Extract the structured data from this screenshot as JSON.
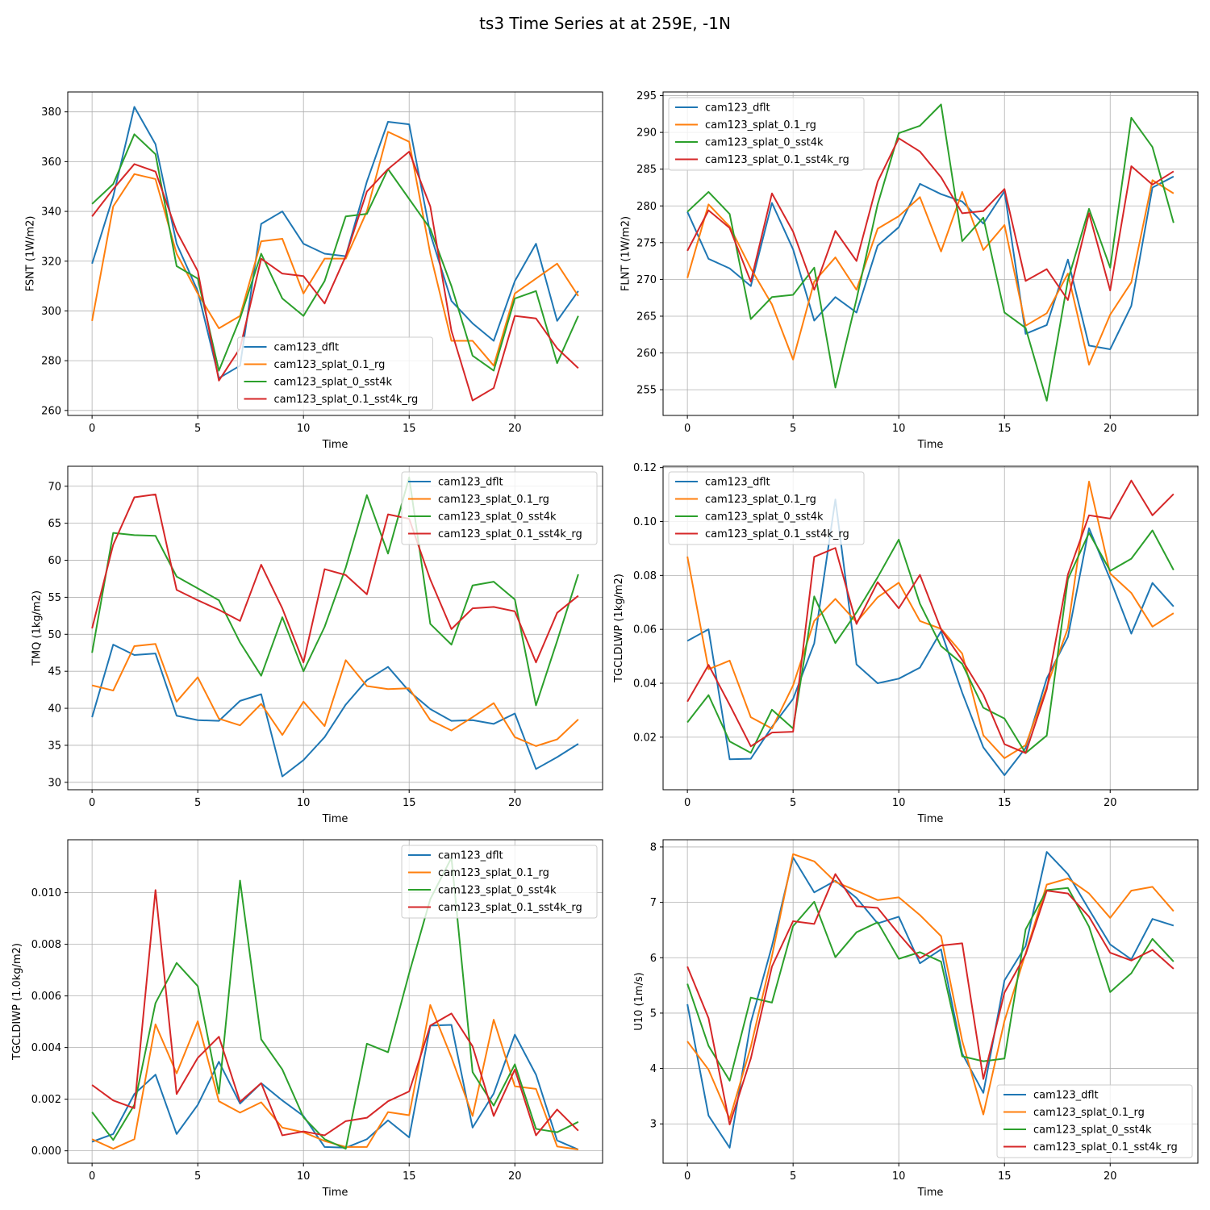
{
  "figure": {
    "title": "ts3 Time Series at at 259E, -1N"
  },
  "series_names": [
    "cam123_dflt",
    "cam123_splat_0.1_rg",
    "cam123_splat_0_sst4k",
    "cam123_splat_0.1_sst4k_rg"
  ],
  "colors": [
    "#1f77b4",
    "#ff7f0e",
    "#2ca02c",
    "#d62728"
  ],
  "chart_data": [
    {
      "type": "line",
      "title": "",
      "xlabel": "Time",
      "ylabel": "FSNT (1W/m2)",
      "x": [
        0,
        1,
        2,
        3,
        4,
        5,
        6,
        7,
        8,
        9,
        10,
        11,
        12,
        13,
        14,
        15,
        16,
        17,
        18,
        19,
        20,
        21,
        22,
        23
      ],
      "xlim": [
        -1.15,
        24.15
      ],
      "ylim": [
        258,
        388
      ],
      "xticks": [
        0,
        5,
        10,
        15,
        20
      ],
      "yticks": [
        260,
        280,
        300,
        320,
        340,
        360,
        380
      ],
      "ytick_labels": [
        "260",
        "280",
        "300",
        "320",
        "340",
        "360",
        "380"
      ],
      "grid": true,
      "legend_loc": "lower-center",
      "series": [
        {
          "name": "cam123_dflt",
          "values": [
            319,
            346,
            382,
            367,
            327,
            308,
            273,
            278,
            335,
            340,
            327,
            323,
            322,
            352,
            376,
            375,
            331,
            304,
            295,
            288,
            312,
            327,
            296,
            308
          ]
        },
        {
          "name": "cam123_splat_0.1_rg",
          "values": [
            296,
            342,
            355,
            353,
            323,
            307,
            293,
            298,
            328,
            329,
            307,
            321,
            321,
            340,
            372,
            368,
            323,
            288,
            288,
            278,
            307,
            313,
            319,
            306
          ]
        },
        {
          "name": "cam123_splat_0_sst4k",
          "values": [
            343,
            351,
            371,
            363,
            318,
            313,
            276,
            297,
            323,
            305,
            298,
            312,
            338,
            339,
            357,
            345,
            333,
            310,
            282,
            276,
            305,
            308,
            279,
            298
          ]
        },
        {
          "name": "cam123_splat_0.1_sst4k_rg",
          "values": [
            338,
            349,
            359,
            356,
            332,
            316,
            272,
            285,
            321,
            315,
            314,
            303,
            322,
            348,
            357,
            364,
            342,
            292,
            264,
            269,
            298,
            297,
            285,
            277
          ]
        }
      ]
    },
    {
      "type": "line",
      "title": "",
      "xlabel": "Time",
      "ylabel": "FLNT (1W/m2)",
      "x": [
        0,
        1,
        2,
        3,
        4,
        5,
        6,
        7,
        8,
        9,
        10,
        11,
        12,
        13,
        14,
        15,
        16,
        17,
        18,
        19,
        20,
        21,
        22,
        23
      ],
      "xlim": [
        -1.15,
        24.15
      ],
      "ylim": [
        251.5,
        295.5
      ],
      "xticks": [
        0,
        5,
        10,
        15,
        20
      ],
      "yticks": [
        255,
        260,
        265,
        270,
        275,
        280,
        285,
        290,
        295
      ],
      "ytick_labels": [
        "255",
        "260",
        "265",
        "270",
        "275",
        "280",
        "285",
        "290",
        "295"
      ],
      "grid": true,
      "legend_loc": "upper-left",
      "series": [
        {
          "name": "cam123_dflt",
          "values": [
            279.2,
            272.8,
            271.5,
            269.1,
            280.4,
            274.1,
            264.4,
            267.6,
            265.5,
            274.6,
            277.1,
            283.0,
            281.6,
            280.6,
            277.6,
            282.0,
            262.6,
            263.8,
            272.7,
            261.0,
            260.5,
            266.4,
            282.5,
            284.0
          ]
        },
        {
          "name": "cam123_splat_0.1_rg",
          "values": [
            270.2,
            280.2,
            277.2,
            271.5,
            266.6,
            259.1,
            269.7,
            273.0,
            268.6,
            276.9,
            278.6,
            281.2,
            273.8,
            281.9,
            274.0,
            277.4,
            263.7,
            265.4,
            270.8,
            258.4,
            265.2,
            269.6,
            283.5,
            281.7
          ]
        },
        {
          "name": "cam123_splat_0_sst4k",
          "values": [
            279.2,
            281.9,
            278.9,
            264.6,
            267.6,
            267.9,
            271.6,
            255.3,
            267.3,
            280.2,
            289.9,
            290.9,
            293.8,
            275.2,
            278.4,
            265.5,
            263.4,
            253.5,
            269.9,
            279.6,
            271.6,
            292.0,
            288.0,
            277.7
          ]
        },
        {
          "name": "cam123_splat_0.1_sst4k_rg",
          "values": [
            273.9,
            279.4,
            277.0,
            269.7,
            281.7,
            276.5,
            268.6,
            276.6,
            272.5,
            283.3,
            289.2,
            287.4,
            283.9,
            279.0,
            279.3,
            282.3,
            269.8,
            271.4,
            267.2,
            279.0,
            268.5,
            285.4,
            282.9,
            284.7
          ]
        }
      ]
    },
    {
      "type": "line",
      "title": "",
      "xlabel": "Time",
      "ylabel": "TMQ (1kg/m2)",
      "x": [
        0,
        1,
        2,
        3,
        4,
        5,
        6,
        7,
        8,
        9,
        10,
        11,
        12,
        13,
        14,
        15,
        16,
        17,
        18,
        19,
        20,
        21,
        22,
        23
      ],
      "xlim": [
        -1.15,
        24.15
      ],
      "ylim": [
        29,
        72.7
      ],
      "xticks": [
        0,
        5,
        10,
        15,
        20
      ],
      "yticks": [
        30,
        35,
        40,
        45,
        50,
        55,
        60,
        65,
        70
      ],
      "ytick_labels": [
        "30",
        "35",
        "40",
        "45",
        "50",
        "55",
        "60",
        "65",
        "70"
      ],
      "grid": true,
      "legend_loc": "upper-right",
      "series": [
        {
          "name": "cam123_dflt",
          "values": [
            38.8,
            48.6,
            47.2,
            47.4,
            39.0,
            38.4,
            38.3,
            41.0,
            41.9,
            30.8,
            33.0,
            36.1,
            40.5,
            43.8,
            45.6,
            42.3,
            39.9,
            38.3,
            38.4,
            37.9,
            39.3,
            31.8,
            33.4,
            35.2
          ]
        },
        {
          "name": "cam123_splat_0.1_rg",
          "values": [
            43.1,
            42.4,
            48.4,
            48.7,
            40.9,
            44.2,
            38.6,
            37.7,
            40.6,
            36.4,
            40.9,
            37.6,
            46.5,
            43.0,
            42.6,
            42.7,
            38.4,
            37.0,
            38.8,
            40.7,
            36.1,
            34.9,
            35.8,
            38.5
          ]
        },
        {
          "name": "cam123_splat_0_sst4k",
          "values": [
            47.5,
            63.7,
            63.4,
            63.3,
            57.8,
            56.2,
            54.6,
            48.9,
            44.4,
            52.3,
            45.0,
            51.0,
            59.0,
            68.8,
            60.9,
            71.2,
            51.4,
            48.6,
            56.6,
            57.1,
            54.7,
            40.4,
            49.1,
            58.1
          ]
        },
        {
          "name": "cam123_splat_0.1_sst4k_rg",
          "values": [
            50.8,
            62.1,
            68.5,
            68.9,
            56.0,
            54.6,
            53.3,
            51.8,
            59.4,
            53.5,
            46.2,
            58.8,
            58.0,
            55.4,
            66.2,
            65.6,
            57.4,
            50.7,
            53.5,
            53.7,
            53.1,
            46.2,
            52.9,
            55.2
          ]
        }
      ]
    },
    {
      "type": "line",
      "title": "",
      "xlabel": "Time",
      "ylabel": "TGCLDLWP (1kg/m2)",
      "x": [
        0,
        1,
        2,
        3,
        4,
        5,
        6,
        7,
        8,
        9,
        10,
        11,
        12,
        13,
        14,
        15,
        16,
        17,
        18,
        19,
        20,
        21,
        22,
        23
      ],
      "xlim": [
        -1.15,
        24.15
      ],
      "ylim": [
        0.0005,
        0.1205
      ],
      "xticks": [
        0,
        5,
        10,
        15,
        20
      ],
      "yticks": [
        0.02,
        0.04,
        0.06,
        0.08,
        0.1,
        0.12
      ],
      "ytick_labels": [
        "0.02",
        "0.04",
        "0.06",
        "0.08",
        "0.10",
        "0.12"
      ],
      "grid": true,
      "legend_loc": "upper-left",
      "series": [
        {
          "name": "cam123_dflt",
          "values": [
            0.0557,
            0.06,
            0.0118,
            0.012,
            0.0238,
            0.0342,
            0.0548,
            0.1082,
            0.047,
            0.04,
            0.0417,
            0.0458,
            0.0593,
            0.0365,
            0.0162,
            0.0059,
            0.016,
            0.0418,
            0.0572,
            0.0975,
            0.0786,
            0.0584,
            0.0772,
            0.0685
          ]
        },
        {
          "name": "cam123_splat_0.1_rg",
          "values": [
            0.087,
            0.0452,
            0.0484,
            0.0274,
            0.0232,
            0.0392,
            0.0631,
            0.0713,
            0.0627,
            0.0719,
            0.0773,
            0.0631,
            0.0602,
            0.051,
            0.0207,
            0.0122,
            0.017,
            0.0387,
            0.0604,
            0.1148,
            0.0807,
            0.0735,
            0.061,
            0.066
          ]
        },
        {
          "name": "cam123_splat_0_sst4k",
          "values": [
            0.0255,
            0.0356,
            0.0184,
            0.0142,
            0.0302,
            0.0232,
            0.0722,
            0.0549,
            0.0663,
            0.0793,
            0.0933,
            0.0695,
            0.0538,
            0.0472,
            0.0309,
            0.0269,
            0.0141,
            0.0206,
            0.0786,
            0.0958,
            0.0817,
            0.0862,
            0.0967,
            0.082
          ]
        },
        {
          "name": "cam123_splat_0.1_sst4k_rg",
          "values": [
            0.0332,
            0.0468,
            0.032,
            0.0166,
            0.0217,
            0.022,
            0.0869,
            0.0902,
            0.062,
            0.0775,
            0.0678,
            0.0802,
            0.06,
            0.0486,
            0.0358,
            0.0174,
            0.0141,
            0.0378,
            0.0803,
            0.1023,
            0.1011,
            0.1152,
            0.1023,
            0.1102
          ]
        }
      ]
    },
    {
      "type": "line",
      "title": "",
      "xlabel": "Time",
      "ylabel": "TGCLDIWP (1.0kg/m2)",
      "x": [
        0,
        1,
        2,
        3,
        4,
        5,
        6,
        7,
        8,
        9,
        10,
        11,
        12,
        13,
        14,
        15,
        16,
        17,
        18,
        19,
        20,
        21,
        22,
        23
      ],
      "xlim": [
        -1.15,
        24.15
      ],
      "ylim": [
        -0.00048,
        0.01205
      ],
      "xticks": [
        0,
        5,
        10,
        15,
        20
      ],
      "yticks": [
        0.0,
        0.002,
        0.004,
        0.006,
        0.008,
        0.01
      ],
      "ytick_labels": [
        "0.000",
        "0.002",
        "0.004",
        "0.006",
        "0.008",
        "0.010"
      ],
      "grid": true,
      "legend_loc": "upper-right",
      "series": [
        {
          "name": "cam123_dflt",
          "values": [
            0.00035,
            0.00065,
            0.0022,
            0.00295,
            0.00065,
            0.00178,
            0.00345,
            0.00183,
            0.00262,
            0.00195,
            0.00135,
            0.00015,
            0.00012,
            0.00045,
            0.00118,
            0.00052,
            0.00485,
            0.00488,
            0.0009,
            0.00222,
            0.0045,
            0.00295,
            0.0004,
            5e-05
          ]
        },
        {
          "name": "cam123_splat_0.1_rg",
          "values": [
            0.00045,
            8e-05,
            0.00045,
            0.0049,
            0.003,
            0.00502,
            0.00192,
            0.00148,
            0.00188,
            0.0009,
            0.00072,
            0.00038,
            0.00015,
            0.00015,
            0.0015,
            0.00138,
            0.00565,
            0.00362,
            0.00135,
            0.00508,
            0.0025,
            0.0024,
            0.00017,
            5e-05
          ]
        },
        {
          "name": "cam123_splat_0_sst4k",
          "values": [
            0.0015,
            0.00042,
            0.00178,
            0.00572,
            0.00728,
            0.00638,
            0.00222,
            0.01047,
            0.00432,
            0.00315,
            0.0013,
            0.00045,
            8e-05,
            0.00415,
            0.00382,
            0.00688,
            0.00975,
            0.01135,
            0.00305,
            0.00175,
            0.00335,
            0.00085,
            0.00072,
            0.00112
          ]
        },
        {
          "name": "cam123_splat_0.1_sst4k_rg",
          "values": [
            0.00255,
            0.00195,
            0.00165,
            0.0101,
            0.0022,
            0.0036,
            0.00442,
            0.0019,
            0.00262,
            0.0006,
            0.00075,
            0.0006,
            0.00115,
            0.00128,
            0.00192,
            0.0023,
            0.00485,
            0.00532,
            0.00405,
            0.00135,
            0.00315,
            0.0006,
            0.0016,
            0.00078
          ]
        }
      ]
    },
    {
      "type": "line",
      "title": "",
      "xlabel": "Time",
      "ylabel": "U10 (1m/s)",
      "x": [
        0,
        1,
        2,
        3,
        4,
        5,
        6,
        7,
        8,
        9,
        10,
        11,
        12,
        13,
        14,
        15,
        16,
        17,
        18,
        19,
        20,
        21,
        22,
        23
      ],
      "xlim": [
        -1.15,
        24.15
      ],
      "ylim": [
        2.29,
        8.13
      ],
      "xticks": [
        0,
        5,
        10,
        15,
        20
      ],
      "yticks": [
        3,
        4,
        5,
        6,
        7,
        8
      ],
      "ytick_labels": [
        "3",
        "4",
        "5",
        "6",
        "7",
        "8"
      ],
      "grid": true,
      "legend_loc": "lower-right",
      "series": [
        {
          "name": "cam123_dflt",
          "values": [
            5.16,
            3.15,
            2.57,
            4.83,
            6.21,
            7.81,
            7.18,
            7.39,
            7.08,
            6.62,
            6.74,
            5.9,
            6.15,
            4.27,
            3.56,
            5.59,
            6.21,
            7.91,
            7.51,
            6.87,
            6.24,
            5.97,
            6.7,
            6.58
          ]
        },
        {
          "name": "cam123_splat_0.1_rg",
          "values": [
            4.49,
            3.98,
            3.09,
            4.39,
            6.03,
            7.87,
            7.74,
            7.37,
            7.21,
            7.04,
            7.09,
            6.77,
            6.39,
            4.5,
            3.17,
            4.86,
            6.08,
            7.32,
            7.43,
            7.16,
            6.72,
            7.21,
            7.28,
            6.84
          ]
        },
        {
          "name": "cam123_splat_0_sst4k",
          "values": [
            5.53,
            4.41,
            3.78,
            5.28,
            5.19,
            6.57,
            7.01,
            6.01,
            6.46,
            6.64,
            5.98,
            6.1,
            5.93,
            4.22,
            4.13,
            4.18,
            6.51,
            7.22,
            7.26,
            6.56,
            5.38,
            5.72,
            6.34,
            5.93
          ]
        },
        {
          "name": "cam123_splat_0.1_sst4k_rg",
          "values": [
            5.84,
            4.91,
            2.99,
            4.18,
            5.84,
            6.66,
            6.61,
            7.51,
            6.93,
            6.9,
            6.43,
            5.99,
            6.22,
            6.26,
            3.81,
            5.37,
            6.06,
            7.21,
            7.16,
            6.74,
            6.09,
            5.95,
            6.14,
            5.8
          ]
        }
      ]
    }
  ]
}
